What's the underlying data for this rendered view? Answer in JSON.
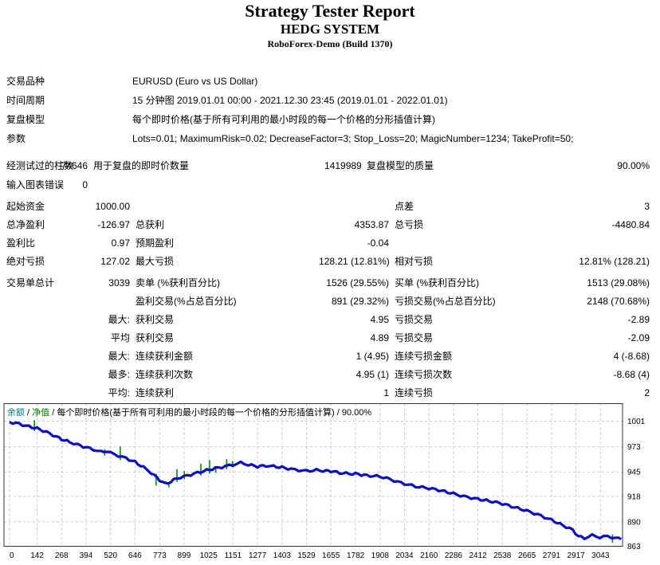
{
  "header": {
    "title": "Strategy Tester Report",
    "strategy_name": "HEDG SYSTEM",
    "server": "RoboForex-Demo (Build 1370)"
  },
  "info_rows": [
    {
      "label": "交易品种",
      "value": "EURUSD (Euro vs US Dollar)"
    },
    {
      "label": "时间周期",
      "value": "15 分钟图 2019.01.01 00:00 - 2021.12.30 23:45 (2019.01.01 - 2022.01.01)"
    },
    {
      "label": "复盘模型",
      "value": "每个即时价格(基于所有可利用的最小时段的每一个价格的分形插值计算)"
    },
    {
      "label": "参数",
      "value": "Lots=0.01; MaximumRisk=0.02; DecreaseFactor=3; Stop_Loss=20; MagicNumber=1234; TakeProfit=50;"
    }
  ],
  "stats_bars": [
    {
      "c1": "经测试过的柱数",
      "c2": "74646",
      "c3": "用于复盘的即时价数量",
      "c4": "1419989",
      "c5": "复盘模型的质量",
      "c6": "90.00%"
    },
    {
      "c1": "输入图表错误",
      "c2": "0",
      "c3": "",
      "c4": "",
      "c5": "",
      "c6": ""
    }
  ],
  "stats_profit": [
    {
      "c1": "起始资金",
      "c2": "1000.00",
      "c3": "",
      "c4": "",
      "c5": "点差",
      "c6": "3"
    },
    {
      "c1": "总净盈利",
      "c2": "-126.97",
      "c3": "总获利",
      "c4": "4353.87",
      "c5": "总亏损",
      "c6": "-4480.84"
    },
    {
      "c1": "盈利比",
      "c2": "0.97",
      "c3": "预期盈利",
      "c4": "-0.04",
      "c5": "",
      "c6": ""
    },
    {
      "c1": "绝对亏损",
      "c2": "127.02",
      "c3": "最大亏损",
      "c4": "128.21 (12.81%)",
      "c5": "相对亏损",
      "c6": "12.81% (128.21)"
    }
  ],
  "stats_trades": [
    {
      "c1": "交易单总计",
      "c2": "3039",
      "c3": "卖单 (%获利百分比)",
      "c4": "1526 (29.55%)",
      "c5": "买单 (%获利百分比)",
      "c6": "1513 (29.08%)"
    },
    {
      "c1": "",
      "c2": "",
      "c3": "盈利交易(%占总百分比)",
      "c4": "891 (29.32%)",
      "c5": "亏损交易(%占总百分比)",
      "c6": "2148 (70.68%)"
    },
    {
      "c1": "",
      "c2": "最大:",
      "c3": "获利交易",
      "c4": "4.95",
      "c5": "亏损交易",
      "c6": "-2.89"
    },
    {
      "c1": "",
      "c2": "平均",
      "c3": "获利交易",
      "c4": "4.89",
      "c5": "亏损交易",
      "c6": "-2.09"
    },
    {
      "c1": "",
      "c2": "最大:",
      "c3": "连续获利金额",
      "c4": "1 (4.95)",
      "c5": "连续亏损金额",
      "c6": "4 (-8.68)"
    },
    {
      "c1": "",
      "c2": "最多:",
      "c3": "连续获利次数",
      "c4": "4.95 (1)",
      "c5": "连续亏损次数",
      "c6": "-8.68 (4)"
    },
    {
      "c1": "",
      "c2": "平均:",
      "c3": "连续获利",
      "c4": "1",
      "c5": "连续亏损",
      "c6": "2"
    }
  ],
  "chart_data": {
    "type": "line",
    "legend": [
      {
        "label": "余额",
        "color": "#008080"
      },
      {
        "label": "净值",
        "color": "#008000"
      }
    ],
    "legend_sep": " / ",
    "legend_rest": "每个即时价格(基于所有可利用的最小时段的每一个价格的分形插值计算) / 90.00%",
    "model_quality": "90.00%",
    "x_ticks": [
      0,
      142,
      268,
      394,
      520,
      646,
      773,
      899,
      1025,
      1151,
      1277,
      1403,
      1529,
      1655,
      1782,
      1908,
      2034,
      2160,
      2286,
      2412,
      2538,
      2665,
      2791,
      2917,
      3043
    ],
    "y_ticks": [
      1001,
      973,
      945,
      918,
      890,
      863
    ],
    "xlim": [
      0,
      3156
    ],
    "ylim": [
      863,
      1020
    ],
    "grid": true,
    "colors": {
      "balance_line": "#0b0bc7",
      "equity_spike": "#009000",
      "gridline": "#c9c9c9",
      "frame": "#333333"
    },
    "series": [
      {
        "name": "余额",
        "points": [
          [
            0,
            1000
          ],
          [
            50,
            998
          ],
          [
            100,
            995
          ],
          [
            142,
            993
          ],
          [
            190,
            989
          ],
          [
            240,
            984
          ],
          [
            268,
            981
          ],
          [
            310,
            978
          ],
          [
            350,
            975
          ],
          [
            394,
            972
          ],
          [
            430,
            970
          ],
          [
            470,
            967
          ],
          [
            500,
            968
          ],
          [
            520,
            966
          ],
          [
            560,
            963
          ],
          [
            600,
            960
          ],
          [
            646,
            956
          ],
          [
            690,
            950
          ],
          [
            730,
            944
          ],
          [
            773,
            936
          ],
          [
            800,
            932
          ],
          [
            830,
            934
          ],
          [
            860,
            938
          ],
          [
            899,
            940
          ],
          [
            950,
            943
          ],
          [
            1000,
            946
          ],
          [
            1060,
            949
          ],
          [
            1110,
            951
          ],
          [
            1151,
            953
          ],
          [
            1190,
            955
          ],
          [
            1230,
            953
          ],
          [
            1277,
            951
          ],
          [
            1320,
            952
          ],
          [
            1360,
            951
          ],
          [
            1403,
            950
          ],
          [
            1450,
            948
          ],
          [
            1490,
            947
          ],
          [
            1529,
            946
          ],
          [
            1580,
            947
          ],
          [
            1630,
            946
          ],
          [
            1655,
            946
          ],
          [
            1700,
            944
          ],
          [
            1750,
            943
          ],
          [
            1782,
            943
          ],
          [
            1840,
            941
          ],
          [
            1908,
            940
          ],
          [
            1960,
            937
          ],
          [
            2000,
            934
          ],
          [
            2034,
            932
          ],
          [
            2090,
            929
          ],
          [
            2160,
            927
          ],
          [
            2210,
            925
          ],
          [
            2286,
            921
          ],
          [
            2340,
            918
          ],
          [
            2412,
            915
          ],
          [
            2470,
            913
          ],
          [
            2538,
            910
          ],
          [
            2600,
            906
          ],
          [
            2665,
            902
          ],
          [
            2720,
            898
          ],
          [
            2791,
            892
          ],
          [
            2850,
            886
          ],
          [
            2900,
            881
          ],
          [
            2930,
            874
          ],
          [
            2960,
            872
          ],
          [
            3000,
            875
          ],
          [
            3040,
            873
          ],
          [
            3080,
            874
          ],
          [
            3120,
            872
          ],
          [
            3150,
            871
          ]
        ]
      },
      {
        "name": "净值",
        "spikes": [
          [
            128,
            990,
            1002
          ],
          [
            490,
            963,
            970
          ],
          [
            570,
            958,
            973
          ],
          [
            755,
            930,
            943
          ],
          [
            820,
            928,
            934
          ],
          [
            862,
            934,
            948
          ],
          [
            900,
            937,
            946
          ],
          [
            985,
            941,
            954
          ],
          [
            1030,
            943,
            958
          ],
          [
            1062,
            944,
            951
          ],
          [
            1118,
            948,
            959
          ],
          [
            1148,
            950,
            957
          ],
          [
            3105,
            867,
            876
          ]
        ]
      }
    ]
  }
}
